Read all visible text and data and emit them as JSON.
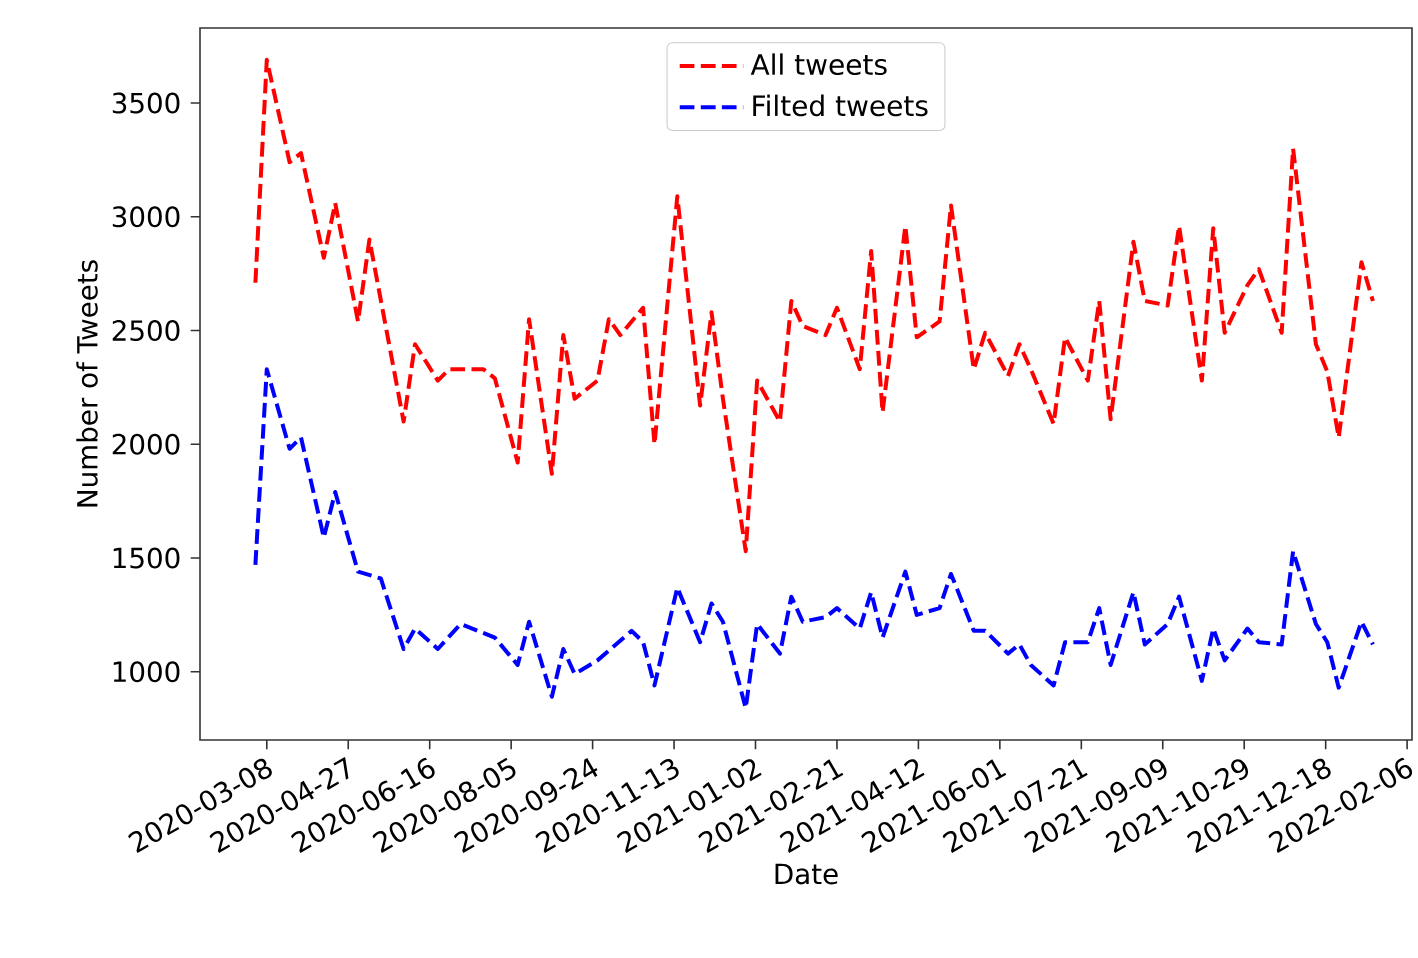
{
  "chart_data": {
    "type": "line",
    "xlabel": "Date",
    "ylabel": "Number of Tweets",
    "line_style": "dashed",
    "marker": "none",
    "grid": false,
    "legend": "top",
    "xlim": [
      "2020-01-27",
      "2022-02-09"
    ],
    "ylim": [
      700,
      3830
    ],
    "xticks": [
      "2020-03-08",
      "2020-04-27",
      "2020-06-16",
      "2020-08-05",
      "2020-09-24",
      "2020-11-13",
      "2021-01-02",
      "2021-02-21",
      "2021-04-12",
      "2021-06-01",
      "2021-07-21",
      "2021-09-09",
      "2021-10-29",
      "2021-12-18",
      "2022-02-06"
    ],
    "yticks": [
      1000,
      1500,
      2000,
      2500,
      3000,
      3500
    ],
    "series": [
      {
        "name": "All tweets",
        "color": "#ff0000",
        "x": [
          "2020-03-01",
          "2020-03-08",
          "2020-03-22",
          "2020-03-29",
          "2020-04-12",
          "2020-04-19",
          "2020-05-03",
          "2020-05-10",
          "2020-05-31",
          "2020-06-07",
          "2020-06-21",
          "2020-06-28",
          "2020-07-19",
          "2020-07-26",
          "2020-08-09",
          "2020-08-16",
          "2020-08-30",
          "2020-09-06",
          "2020-09-13",
          "2020-09-27",
          "2020-10-04",
          "2020-10-11",
          "2020-10-25",
          "2020-11-01",
          "2020-11-15",
          "2020-11-29",
          "2020-12-06",
          "2020-12-13",
          "2020-12-27",
          "2021-01-03",
          "2021-01-17",
          "2021-01-24",
          "2021-01-31",
          "2021-02-14",
          "2021-02-21",
          "2021-03-07",
          "2021-03-14",
          "2021-03-21",
          "2021-04-04",
          "2021-04-11",
          "2021-04-25",
          "2021-05-02",
          "2021-05-16",
          "2021-05-23",
          "2021-06-06",
          "2021-06-13",
          "2021-06-20",
          "2021-07-04",
          "2021-07-11",
          "2021-07-25",
          "2021-08-01",
          "2021-08-08",
          "2021-08-22",
          "2021-08-29",
          "2021-09-12",
          "2021-09-19",
          "2021-10-03",
          "2021-10-10",
          "2021-10-17",
          "2021-10-31",
          "2021-11-07",
          "2021-11-21",
          "2021-11-28",
          "2021-12-12",
          "2021-12-19",
          "2021-12-26",
          "2022-01-09",
          "2022-01-16"
        ],
        "values": [
          2710,
          3690,
          3240,
          3280,
          2820,
          3060,
          2540,
          2900,
          2100,
          2440,
          2280,
          2330,
          2330,
          2290,
          1920,
          2550,
          1870,
          2480,
          2200,
          2280,
          2550,
          2480,
          2600,
          2000,
          3090,
          2170,
          2580,
          2200,
          1530,
          2280,
          2100,
          2630,
          2520,
          2480,
          2600,
          2330,
          2850,
          2140,
          2960,
          2470,
          2540,
          3050,
          2330,
          2490,
          2300,
          2440,
          2330,
          2090,
          2470,
          2280,
          2630,
          2110,
          2890,
          2630,
          2610,
          2960,
          2280,
          2950,
          2490,
          2700,
          2770,
          2490,
          3300,
          2440,
          2320,
          2030,
          2800,
          2630
        ]
      },
      {
        "name": "Filted tweets",
        "color": "#0000ff",
        "x": [
          "2020-03-01",
          "2020-03-08",
          "2020-03-22",
          "2020-03-29",
          "2020-04-12",
          "2020-04-19",
          "2020-05-03",
          "2020-05-17",
          "2020-05-31",
          "2020-06-07",
          "2020-06-21",
          "2020-07-05",
          "2020-07-26",
          "2020-08-09",
          "2020-08-16",
          "2020-08-30",
          "2020-09-06",
          "2020-09-13",
          "2020-09-27",
          "2020-10-18",
          "2020-10-25",
          "2020-11-01",
          "2020-11-15",
          "2020-11-29",
          "2020-12-06",
          "2020-12-13",
          "2020-12-27",
          "2021-01-03",
          "2021-01-17",
          "2021-01-24",
          "2021-01-31",
          "2021-02-14",
          "2021-02-21",
          "2021-03-07",
          "2021-03-14",
          "2021-03-21",
          "2021-04-04",
          "2021-04-11",
          "2021-04-25",
          "2021-05-02",
          "2021-05-16",
          "2021-05-23",
          "2021-06-06",
          "2021-06-13",
          "2021-06-20",
          "2021-07-04",
          "2021-07-11",
          "2021-07-25",
          "2021-08-01",
          "2021-08-08",
          "2021-08-22",
          "2021-08-29",
          "2021-09-12",
          "2021-09-19",
          "2021-10-03",
          "2021-10-10",
          "2021-10-17",
          "2021-10-31",
          "2021-11-07",
          "2021-11-21",
          "2021-11-28",
          "2021-12-12",
          "2021-12-19",
          "2021-12-26",
          "2022-01-09",
          "2022-01-16"
        ],
        "values": [
          1470,
          2330,
          1980,
          2030,
          1590,
          1790,
          1440,
          1410,
          1100,
          1190,
          1100,
          1210,
          1150,
          1030,
          1220,
          890,
          1100,
          990,
          1050,
          1180,
          1130,
          940,
          1370,
          1130,
          1300,
          1220,
          840,
          1210,
          1080,
          1330,
          1220,
          1240,
          1280,
          1190,
          1350,
          1150,
          1440,
          1250,
          1280,
          1430,
          1180,
          1180,
          1080,
          1120,
          1030,
          940,
          1130,
          1130,
          1280,
          1030,
          1350,
          1120,
          1210,
          1330,
          960,
          1190,
          1050,
          1190,
          1130,
          1120,
          1530,
          1210,
          1130,
          930,
          1220,
          1120
        ]
      }
    ]
  }
}
